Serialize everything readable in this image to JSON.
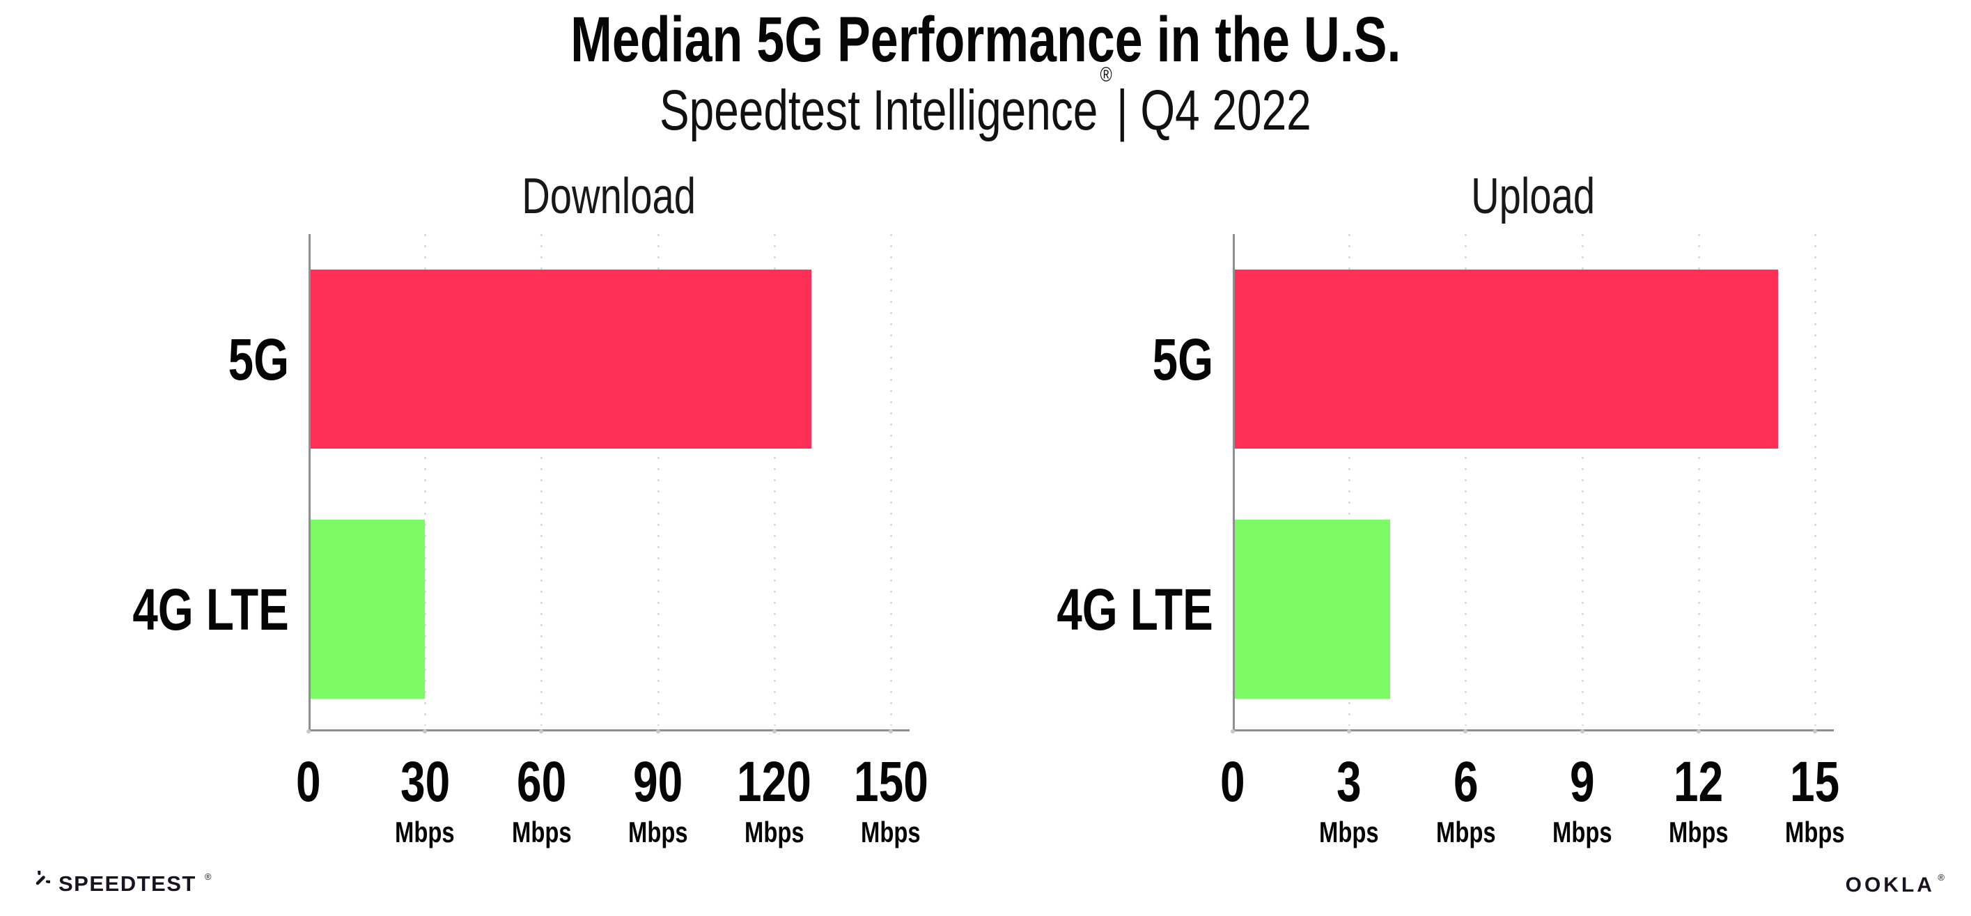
{
  "header": {
    "title": "Median 5G Performance in the U.S.",
    "subtitle_brand": "Speedtest Intelligence",
    "subtitle_mark": "®",
    "subtitle_separator": "| ",
    "subtitle_period": "Q4 2022"
  },
  "chart_data": [
    {
      "type": "bar",
      "orientation": "horizontal",
      "title": "Download",
      "categories": [
        "5G",
        "4G LTE"
      ],
      "values": [
        129,
        29.5
      ],
      "unit": "Mbps",
      "ticks": [
        0,
        30,
        60,
        90,
        120,
        150
      ],
      "xlim": [
        0,
        155
      ],
      "bar_colors": [
        "#ff2f56",
        "#7dfb66"
      ],
      "grid": "dotted-vertical-at-each-tick",
      "legend": "none"
    },
    {
      "type": "bar",
      "orientation": "horizontal",
      "title": "Upload",
      "categories": [
        "5G",
        "4G LTE"
      ],
      "values": [
        14,
        4
      ],
      "unit": "Mbps",
      "ticks": [
        0,
        3,
        6,
        9,
        12,
        15
      ],
      "xlim": [
        0,
        15.5
      ],
      "bar_colors": [
        "#ff2f56",
        "#7dfb66"
      ],
      "grid": "dotted-vertical-at-each-tick",
      "legend": "none"
    }
  ],
  "footer": {
    "speedtest_label": "SPEEDTEST",
    "speedtest_mark": "®",
    "ookla_label": "OOKLA",
    "ookla_mark": "®"
  },
  "colors": {
    "bar_5g": "#ff2f56",
    "bar_4g_lte": "#7dfb66",
    "axis": "#8f8f8f",
    "gridline": "#dcdce6",
    "text": "#0b0b0b",
    "background": "#ffffff"
  }
}
